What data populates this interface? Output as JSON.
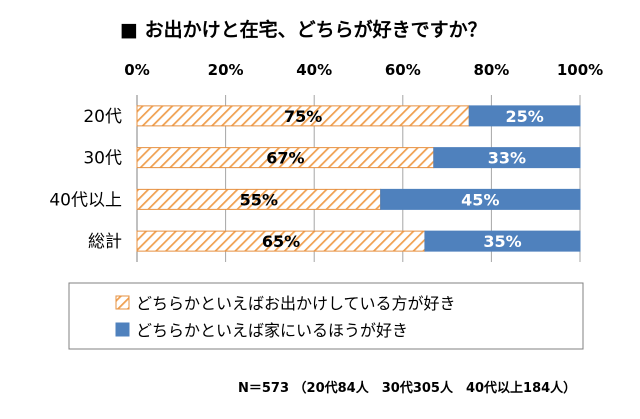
{
  "chart_data": {
    "type": "bar",
    "orientation": "horizontal",
    "stacked": true,
    "title": "■ お出かけと在宅、どちらが好きですか？",
    "categories": [
      "20代",
      "30代",
      "40代以上",
      "総計"
    ],
    "series": [
      {
        "name": "どちらかといえばお出かけしている方が好き",
        "values": [
          75,
          67,
          55,
          65
        ],
        "labels": [
          "75%",
          "67%",
          "55%",
          "65%"
        ],
        "color": "#f0a050",
        "pattern": "diagonal-hatch"
      },
      {
        "name": "どちらかといえば家にいるほうが好き",
        "values": [
          25,
          33,
          45,
          35
        ],
        "labels": [
          "25%",
          "33%",
          "45%",
          "35%"
        ],
        "color": "#4f81bd"
      }
    ],
    "xlim": [
      0,
      100
    ],
    "xticks": [
      "0%",
      "20%",
      "40%",
      "60%",
      "80%",
      "100%"
    ],
    "grid": true,
    "legend": "bottom",
    "footnote": "N＝573 （20代84人　30代305人　40代以上184人）"
  }
}
